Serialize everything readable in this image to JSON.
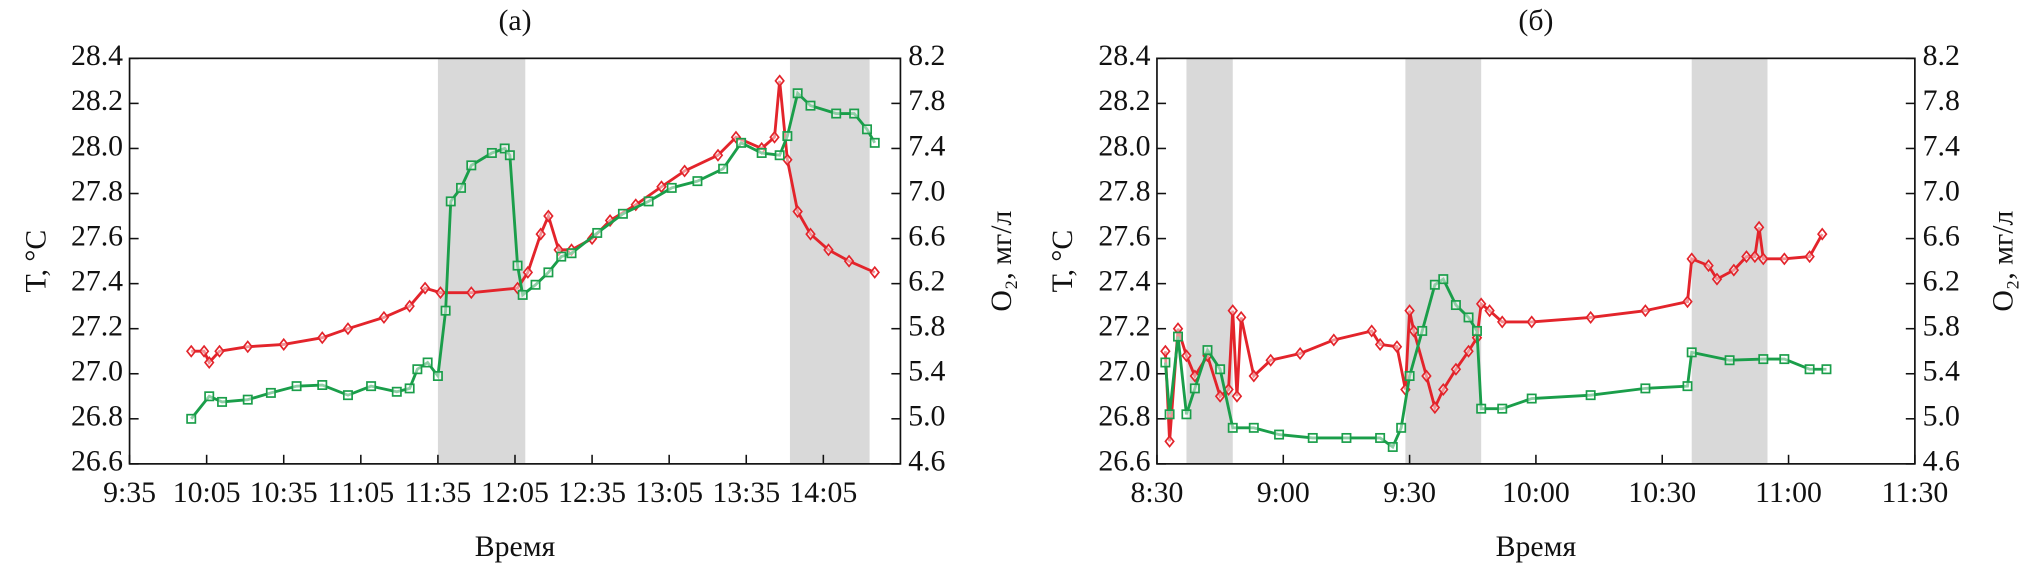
{
  "chart_data": [
    {
      "type": "line",
      "title": "(a)",
      "xlabel": "Время",
      "ylabel": "T, °C",
      "y2label": "O₂, мг/л",
      "xlim": [
        "9:35",
        "14:35"
      ],
      "xticks": [
        "9:35",
        "10:05",
        "10:35",
        "11:05",
        "11:35",
        "12:05",
        "12:35",
        "13:05",
        "13:35",
        "14:05"
      ],
      "ylim": [
        26.6,
        28.4
      ],
      "yticks": [
        26.6,
        26.8,
        {
          "value": 27,
          "label": "27.0"
        },
        27.2,
        27.4,
        27.6,
        27.8,
        {
          "value": 28,
          "label": "28.0"
        },
        28.2,
        28.4
      ],
      "y2lim": [
        4.6,
        8.2
      ],
      "y2ticks": [
        4.6,
        {
          "value": 5,
          "label": "5.0"
        },
        5.4,
        5.8,
        6.2,
        6.6,
        {
          "value": 7,
          "label": "7.0"
        },
        7.4,
        7.8,
        8.2
      ],
      "shaded": [
        [
          "11:35",
          "12:09"
        ],
        [
          "13:52",
          "14:23"
        ]
      ],
      "shade_color": "#d9d9d9",
      "series": [
        {
          "color": "#e3242b",
          "marker": "diamond",
          "x": [
            "9:59",
            "10:04",
            "10:06",
            "10:10",
            "10:21",
            "10:35",
            "10:50",
            "11:00",
            "11:14",
            "11:24",
            "11:30",
            "11:36",
            "11:48",
            "12:06",
            "12:10",
            "12:15",
            "12:18",
            "12:22",
            "12:27",
            "12:35",
            "12:42",
            "12:52",
            "13:02",
            "13:11",
            "13:24",
            "13:31",
            "13:41",
            "13:46",
            "13:48",
            "13:51",
            "13:55",
            "14:00",
            "14:07",
            "14:15",
            "14:25"
          ],
          "values": [
            27.1,
            27.1,
            27.05,
            27.1,
            27.12,
            27.13,
            27.16,
            27.2,
            27.25,
            27.3,
            27.38,
            27.36,
            27.36,
            27.38,
            27.45,
            27.62,
            27.7,
            27.55,
            27.55,
            27.6,
            27.68,
            27.75,
            27.83,
            27.9,
            27.97,
            28.05,
            28.0,
            28.05,
            28.3,
            27.95,
            27.72,
            27.62,
            27.55,
            27.5,
            27.45
          ]
        },
        {
          "color": "#1a9e4a",
          "marker": "square",
          "axis": "y2",
          "x": [
            "9:59",
            "10:06",
            "10:11",
            "10:21",
            "10:30",
            "10:40",
            "10:50",
            "11:00",
            "11:09",
            "11:19",
            "11:24",
            "11:27",
            "11:31",
            "11:35",
            "11:38",
            "11:40",
            "11:44",
            "11:48",
            "11:56",
            "12:01",
            "12:03",
            "12:06",
            "12:08",
            "12:13",
            "12:18",
            "12:23",
            "12:27",
            "12:37",
            "12:47",
            "12:57",
            "13:06",
            "13:16",
            "13:26",
            "13:33",
            "13:41",
            "13:48",
            "13:51",
            "13:55",
            "14:00",
            "14:10",
            "14:17",
            "14:22",
            "14:25"
          ],
          "values": [
            5.0,
            5.2,
            5.15,
            5.17,
            5.23,
            5.29,
            5.3,
            5.21,
            5.29,
            5.24,
            5.27,
            5.44,
            5.5,
            5.38,
            5.96,
            6.93,
            7.05,
            7.25,
            7.36,
            7.4,
            7.34,
            6.36,
            6.1,
            6.19,
            6.3,
            6.44,
            6.47,
            6.65,
            6.82,
            6.93,
            7.05,
            7.11,
            7.22,
            7.45,
            7.36,
            7.34,
            7.51,
            7.89,
            7.78,
            7.71,
            7.71,
            7.57,
            7.45
          ]
        }
      ]
    },
    {
      "type": "line",
      "title": "(б)",
      "xlabel": "Время",
      "ylabel": "T, °C",
      "y2label": "O₂, мг/л",
      "xlim": [
        "8:30",
        "11:30"
      ],
      "xticks": [
        "8:30",
        "9:00",
        "9:30",
        "10:00",
        "10:30",
        "11:00",
        "11:30"
      ],
      "ylim": [
        26.6,
        28.4
      ],
      "yticks": [
        26.6,
        26.8,
        {
          "value": 27,
          "label": "27.0"
        },
        27.2,
        27.4,
        27.6,
        27.8,
        {
          "value": 28,
          "label": "28.0"
        },
        28.2,
        28.4
      ],
      "y2lim": [
        4.6,
        8.2
      ],
      "y2ticks": [
        4.6,
        {
          "value": 5,
          "label": "5.0"
        },
        5.4,
        5.8,
        6.2,
        6.6,
        {
          "value": 7,
          "label": "7.0"
        },
        7.4,
        7.8,
        8.2
      ],
      "shaded": [
        [
          "8:37",
          "8:48"
        ],
        [
          "9:29",
          "9:47"
        ],
        [
          "10:37",
          "10:55"
        ]
      ],
      "shade_color": "#d9d9d9",
      "series": [
        {
          "color": "#e3242b",
          "marker": "diamond",
          "x": [
            "8:32",
            "8:33",
            "8:35",
            "8:37",
            "8:39",
            "8:42",
            "8:45",
            "8:47",
            "8:48",
            "8:49",
            "8:50",
            "8:53",
            "8:57",
            "9:04",
            "9:12",
            "9:21",
            "9:23",
            "9:27",
            "9:29",
            "9:30",
            "9:31",
            "9:34",
            "9:36",
            "9:38",
            "9:41",
            "9:44",
            "9:46",
            "9:47",
            "9:49",
            "9:52",
            "9:59",
            "10:13",
            "10:26",
            "10:36",
            "10:37",
            "10:41",
            "10:43",
            "10:47",
            "10:50",
            "10:52",
            "10:53",
            "10:54",
            "10:59",
            "11:05",
            "11:08"
          ],
          "values": [
            27.1,
            26.7,
            27.2,
            27.08,
            26.99,
            27.08,
            26.9,
            26.93,
            27.28,
            26.9,
            27.25,
            26.99,
            27.06,
            27.09,
            27.15,
            27.19,
            27.13,
            27.12,
            26.93,
            27.28,
            27.19,
            26.99,
            26.85,
            26.93,
            27.02,
            27.1,
            27.16,
            27.31,
            27.28,
            27.23,
            27.23,
            27.25,
            27.28,
            27.32,
            27.51,
            27.48,
            27.42,
            27.46,
            27.52,
            27.52,
            27.65,
            27.51,
            27.51,
            27.52,
            27.62
          ]
        },
        {
          "color": "#1a9e4a",
          "marker": "square",
          "axis": "y2",
          "x": [
            "8:32",
            "8:33",
            "8:35",
            "8:37",
            "8:39",
            "8:42",
            "8:45",
            "8:48",
            "8:53",
            "8:59",
            "9:07",
            "9:15",
            "9:23",
            "9:26",
            "9:28",
            "9:30",
            "9:33",
            "9:36",
            "9:38",
            "9:41",
            "9:44",
            "9:46",
            "9:47",
            "9:52",
            "9:59",
            "10:13",
            "10:26",
            "10:36",
            "10:37",
            "10:46",
            "10:54",
            "10:59",
            "11:05",
            "11:09"
          ],
          "values": [
            5.5,
            5.04,
            5.73,
            5.04,
            5.27,
            5.61,
            5.44,
            4.92,
            4.92,
            4.86,
            4.83,
            4.83,
            4.83,
            4.75,
            4.92,
            5.38,
            5.78,
            6.19,
            6.24,
            6.01,
            5.9,
            5.78,
            5.09,
            5.09,
            5.18,
            5.21,
            5.27,
            5.29,
            5.59,
            5.52,
            5.53,
            5.53,
            5.44,
            5.44
          ]
        }
      ]
    }
  ]
}
